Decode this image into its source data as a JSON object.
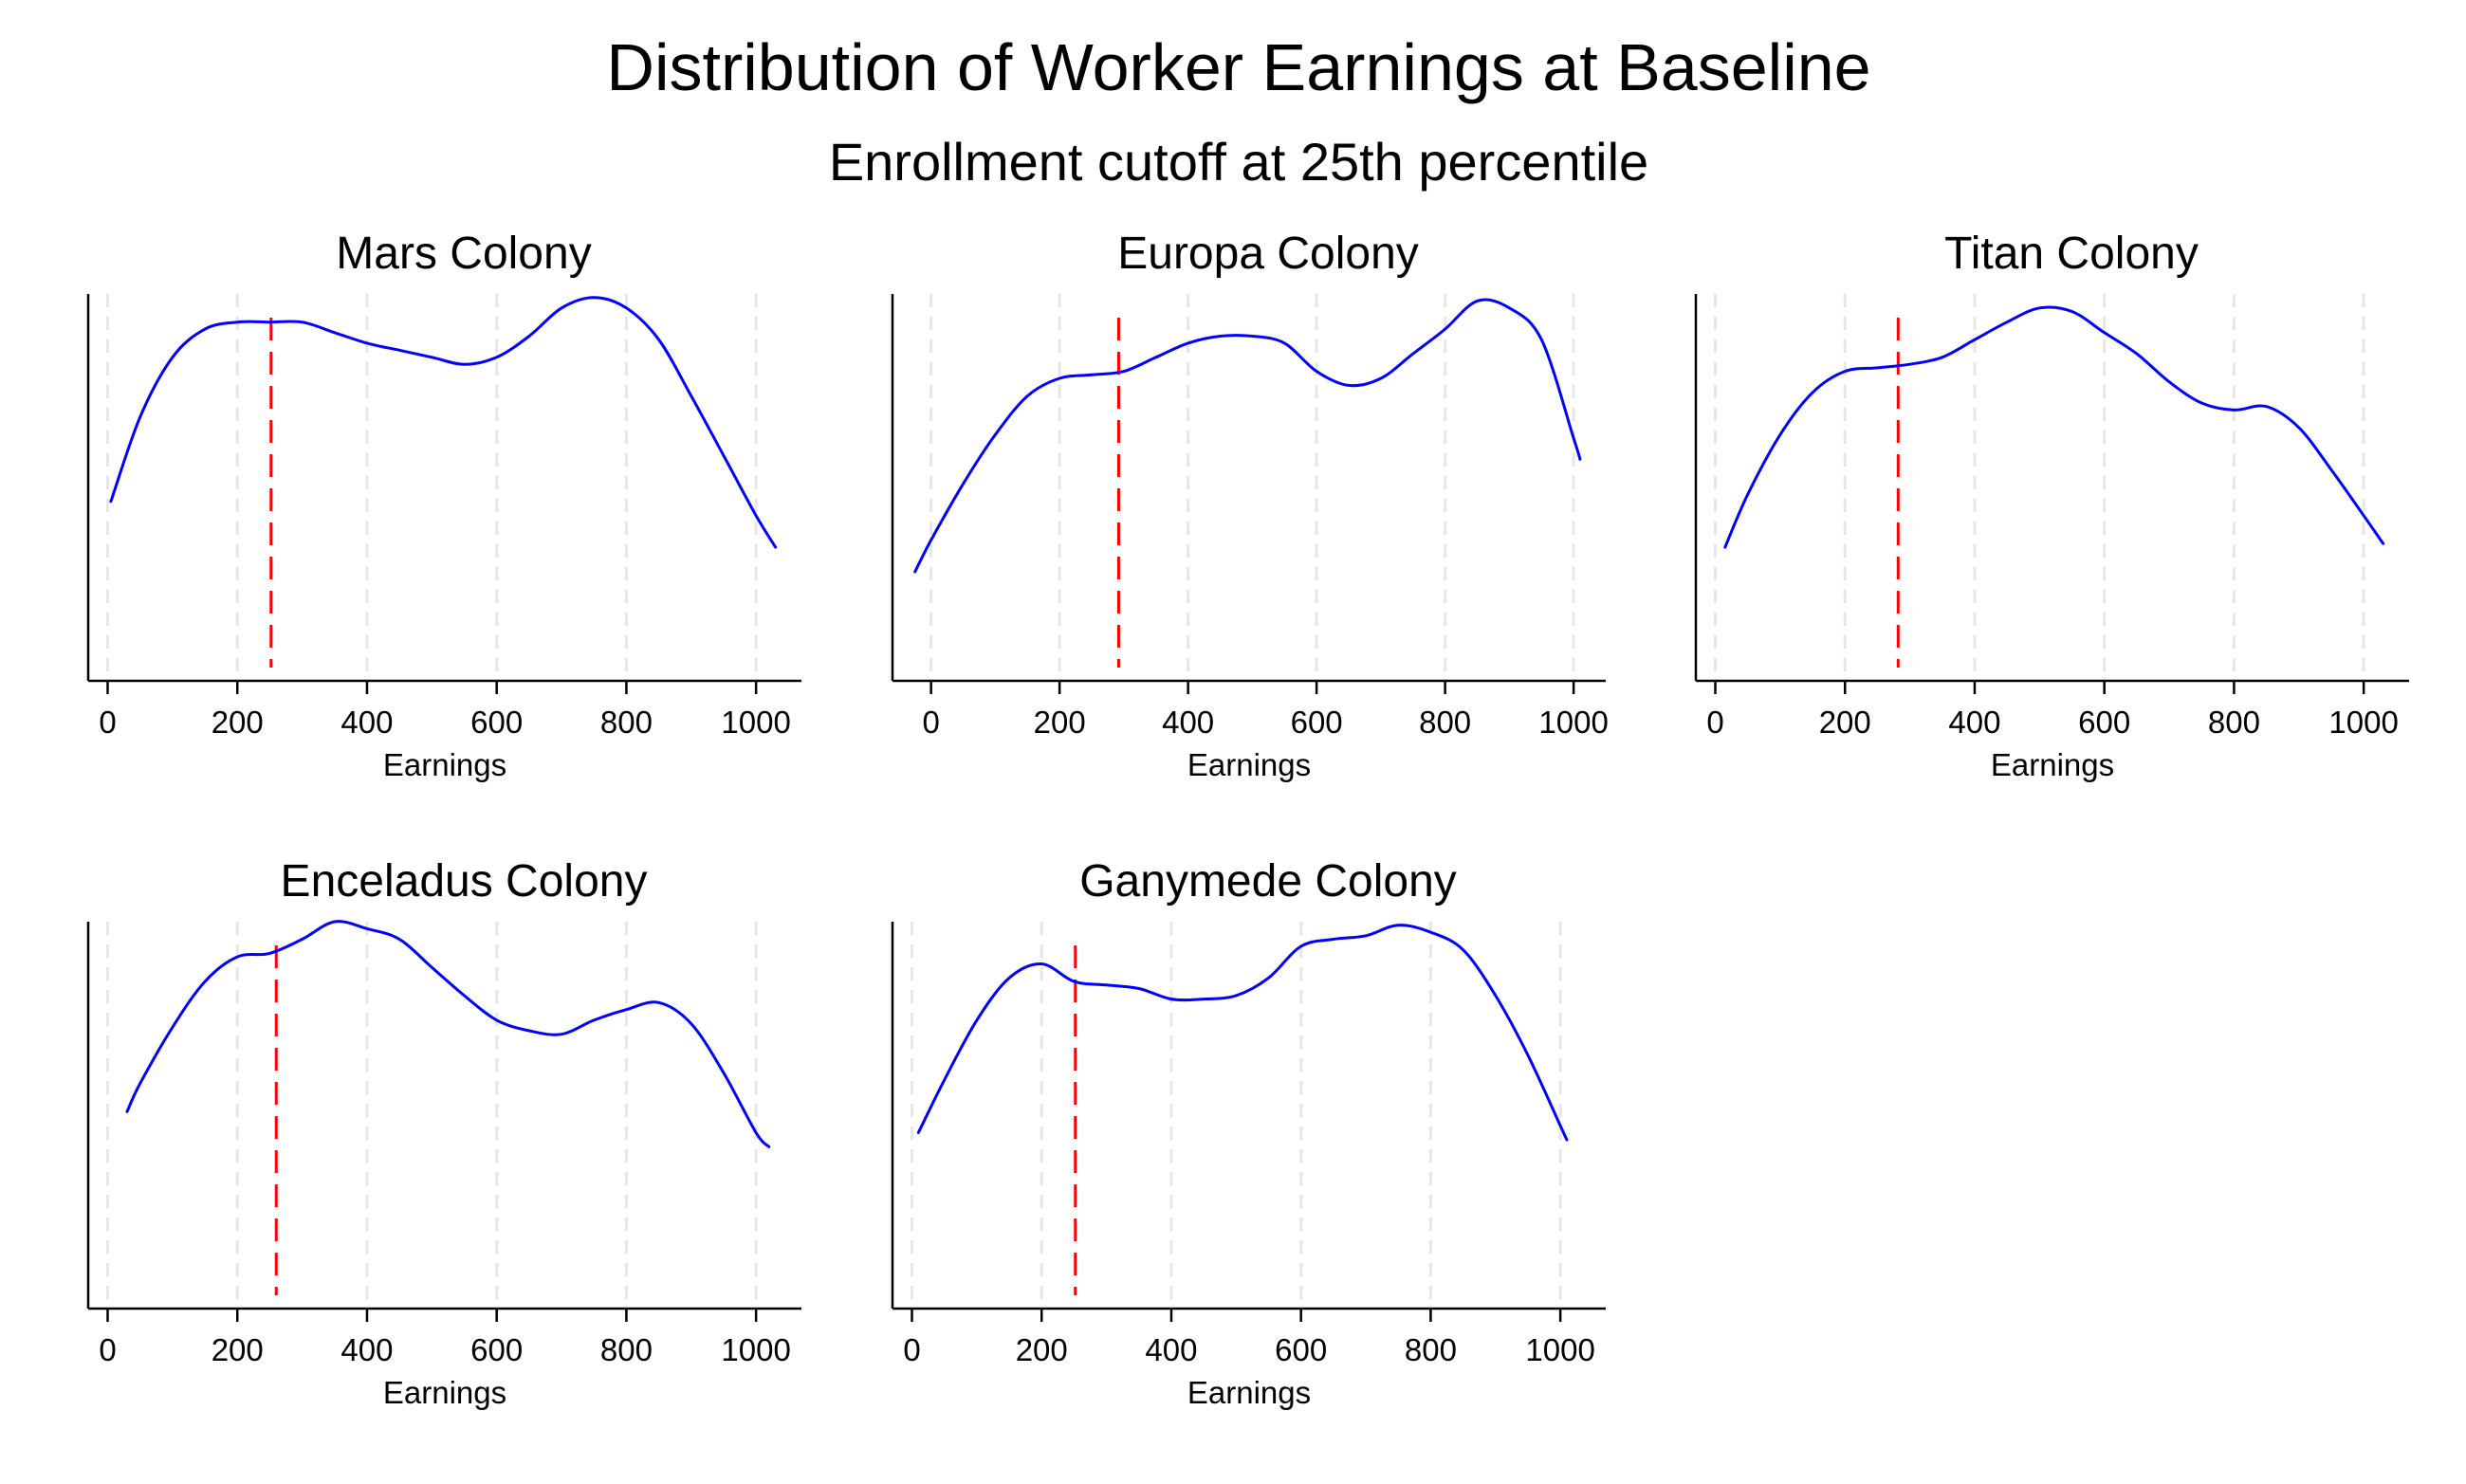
{
  "title": "Distribution of Worker Earnings at Baseline",
  "subtitle": "Enrollment cutoff at 25th percentile",
  "colors": {
    "density_line": "#0000ff",
    "cutoff_line": "#ff0000",
    "grid": "#e6e6e6",
    "axis": "#000000"
  },
  "chart_data": [
    {
      "type": "line",
      "title": "Mars Colony",
      "xlabel": "Earnings",
      "ylabel": "",
      "x_ticks": [
        0,
        200,
        400,
        600,
        800,
        1000
      ],
      "x_tick_labels": [
        "0",
        "200",
        "400",
        "600",
        "800",
        "1000"
      ],
      "xlim": [
        -30,
        1070
      ],
      "ylim": [
        0,
        1.1
      ],
      "grid": true,
      "cutoff": 252,
      "series": [
        {
          "x": [
            5,
            50,
            100,
            150,
            200,
            250,
            300,
            350,
            400,
            450,
            500,
            550,
            600,
            650,
            700,
            750,
            800,
            850,
            900,
            950,
            1000,
            1030
          ],
          "y": [
            0.51,
            0.75,
            0.92,
            1.0,
            1.02,
            1.02,
            1.02,
            0.99,
            0.96,
            0.94,
            0.92,
            0.9,
            0.92,
            0.98,
            1.06,
            1.09,
            1.06,
            0.97,
            0.81,
            0.64,
            0.47,
            0.38
          ]
        }
      ]
    },
    {
      "type": "line",
      "title": "Europa Colony",
      "xlabel": "Earnings",
      "ylabel": "",
      "x_ticks": [
        0,
        200,
        400,
        600,
        800,
        1000
      ],
      "x_tick_labels": [
        "0",
        "200",
        "400",
        "600",
        "800",
        "1000"
      ],
      "xlim": [
        -60,
        1050
      ],
      "ylim": [
        0,
        1.1
      ],
      "grid": true,
      "cutoff": 292,
      "series": [
        {
          "x": [
            -25,
            0,
            50,
            100,
            150,
            200,
            250,
            300,
            350,
            400,
            450,
            500,
            550,
            600,
            650,
            700,
            750,
            800,
            850,
            900,
            950,
            1000,
            1010
          ],
          "y": [
            0.31,
            0.4,
            0.56,
            0.7,
            0.81,
            0.86,
            0.87,
            0.88,
            0.92,
            0.96,
            0.98,
            0.98,
            0.96,
            0.88,
            0.84,
            0.86,
            0.93,
            1.0,
            1.08,
            1.06,
            0.97,
            0.69,
            0.63
          ]
        }
      ]
    },
    {
      "type": "line",
      "title": "Titan Colony",
      "xlabel": "Earnings",
      "ylabel": "",
      "x_ticks": [
        0,
        200,
        400,
        600,
        800,
        1000
      ],
      "x_tick_labels": [
        "0",
        "200",
        "400",
        "600",
        "800",
        "1000"
      ],
      "xlim": [
        -30,
        1070
      ],
      "ylim": [
        0,
        1.1
      ],
      "grid": true,
      "cutoff": 282,
      "series": [
        {
          "x": [
            15,
            50,
            100,
            150,
            200,
            250,
            300,
            350,
            400,
            450,
            500,
            550,
            600,
            650,
            700,
            750,
            800,
            850,
            900,
            950,
            1000,
            1030
          ],
          "y": [
            0.38,
            0.53,
            0.7,
            0.82,
            0.88,
            0.89,
            0.9,
            0.92,
            0.97,
            1.02,
            1.06,
            1.05,
            0.99,
            0.93,
            0.85,
            0.79,
            0.77,
            0.78,
            0.72,
            0.6,
            0.47,
            0.39
          ]
        }
      ]
    },
    {
      "type": "line",
      "title": "Enceladus Colony",
      "xlabel": "Earnings",
      "ylabel": "",
      "x_ticks": [
        0,
        200,
        400,
        600,
        800,
        1000
      ],
      "x_tick_labels": [
        "0",
        "200",
        "400",
        "600",
        "800",
        "1000"
      ],
      "xlim": [
        -30,
        1070
      ],
      "ylim": [
        0,
        1.1
      ],
      "grid": true,
      "cutoff": 260,
      "series": [
        {
          "x": [
            30,
            50,
            100,
            150,
            200,
            250,
            300,
            350,
            400,
            450,
            500,
            550,
            600,
            650,
            700,
            750,
            800,
            850,
            900,
            950,
            1000,
            1020
          ],
          "y": [
            0.56,
            0.64,
            0.8,
            0.93,
            1.0,
            1.01,
            1.05,
            1.1,
            1.08,
            1.05,
            0.97,
            0.89,
            0.82,
            0.79,
            0.78,
            0.82,
            0.85,
            0.87,
            0.81,
            0.67,
            0.5,
            0.46
          ]
        }
      ]
    },
    {
      "type": "line",
      "title": "Ganymede Colony",
      "xlabel": "Earnings",
      "ylabel": "",
      "x_ticks": [
        0,
        200,
        400,
        600,
        800,
        1000
      ],
      "x_tick_labels": [
        "0",
        "200",
        "400",
        "600",
        "800",
        "1000"
      ],
      "xlim": [
        -30,
        1070
      ],
      "ylim": [
        0,
        1.1
      ],
      "grid": true,
      "cutoff": 252,
      "series": [
        {
          "x": [
            10,
            50,
            100,
            150,
            200,
            250,
            300,
            350,
            400,
            450,
            500,
            550,
            600,
            650,
            700,
            750,
            800,
            850,
            900,
            950,
            1000,
            1010
          ],
          "y": [
            0.5,
            0.65,
            0.82,
            0.94,
            0.98,
            0.93,
            0.92,
            0.91,
            0.88,
            0.88,
            0.89,
            0.94,
            1.03,
            1.05,
            1.06,
            1.09,
            1.07,
            1.02,
            0.89,
            0.72,
            0.52,
            0.48
          ]
        }
      ]
    }
  ]
}
